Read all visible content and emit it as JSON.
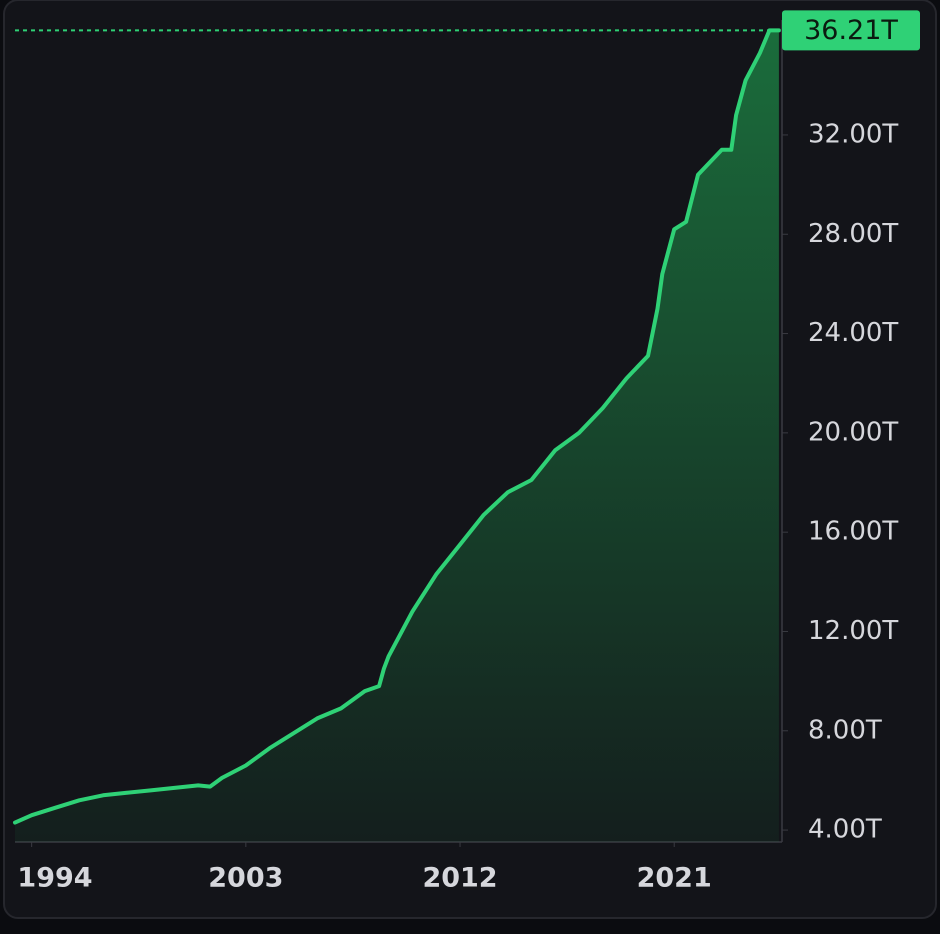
{
  "chart_data": {
    "type": "area",
    "x": [
      1993.3,
      1994,
      1995,
      1996,
      1997,
      1998,
      1999,
      2000,
      2001,
      2001.5,
      2002,
      2003,
      2004,
      2005,
      2006,
      2007,
      2008,
      2008.6,
      2008.8,
      2009,
      2010,
      2011,
      2012,
      2013,
      2014,
      2015,
      2016,
      2017,
      2018,
      2019,
      2019.9,
      2020.3,
      2020.5,
      2021,
      2021.5,
      2022,
      2023,
      2023.4,
      2023.6,
      2024,
      2024.6,
      2025,
      2025.4
    ],
    "values": [
      4.3,
      4.6,
      4.9,
      5.2,
      5.4,
      5.5,
      5.6,
      5.7,
      5.8,
      5.75,
      6.1,
      6.6,
      7.3,
      7.9,
      8.5,
      8.9,
      9.6,
      9.8,
      10.5,
      11.0,
      12.8,
      14.3,
      15.5,
      16.7,
      17.6,
      18.1,
      19.3,
      20.0,
      21.0,
      22.2,
      23.1,
      25.0,
      26.4,
      28.2,
      28.5,
      30.4,
      31.4,
      31.4,
      32.8,
      34.2,
      35.3,
      36.21,
      36.21
    ],
    "color": "#2fd176",
    "xlim": [
      1993.3,
      2025.53
    ],
    "xticks": [
      1994,
      2003,
      2012,
      2021
    ],
    "ylim": [
      3.52,
      36.63
    ],
    "yticks": [
      {
        "value": 4,
        "label": "4.00T"
      },
      {
        "value": 8,
        "label": "8.00T"
      },
      {
        "value": 12,
        "label": "12.00T"
      },
      {
        "value": 16,
        "label": "16.00T"
      },
      {
        "value": 20,
        "label": "20.00T"
      },
      {
        "value": 24,
        "label": "24.00T"
      },
      {
        "value": 28,
        "label": "28.00T"
      },
      {
        "value": 32,
        "label": "32.00T"
      }
    ],
    "last_label": {
      "value": 36.21,
      "label": "36.21T"
    }
  }
}
